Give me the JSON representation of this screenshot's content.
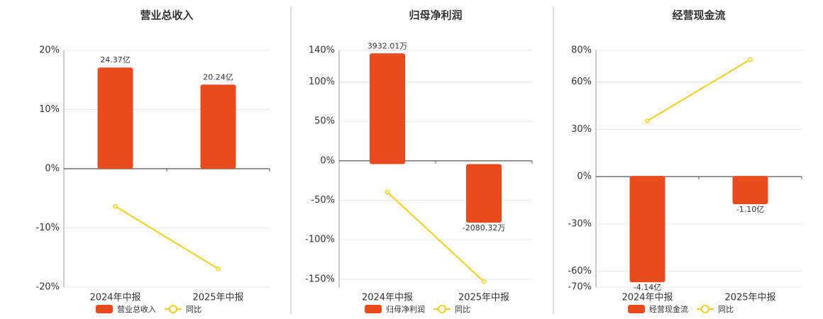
{
  "chart_data": [
    {
      "type": "combo",
      "title": "营业总收入",
      "categories": [
        "2024年中报",
        "2025年中报"
      ],
      "ylim": [
        -20,
        20
      ],
      "yticks": [
        {
          "value": -20,
          "label": "-20%"
        },
        {
          "value": -10,
          "label": "-10%"
        },
        {
          "value": 0,
          "label": "0%"
        },
        {
          "value": 10,
          "label": "10%"
        },
        {
          "value": 20,
          "label": "20%"
        }
      ],
      "y2lim": [
        -28.5,
        28.5
      ],
      "grid": true,
      "series": [
        {
          "name": "营业总收入",
          "type": "bar",
          "axis": "y2",
          "color": "#e84c1e",
          "values": [
            24.37,
            20.24
          ],
          "value_labels": [
            "24.37亿",
            "20.24亿"
          ]
        },
        {
          "name": "同比",
          "type": "line",
          "color": "#f2cf1d",
          "values": [
            -6.35,
            -16.9
          ]
        }
      ]
    },
    {
      "type": "combo",
      "title": "归母净利润",
      "categories": [
        "2024年中报",
        "2025年中报"
      ],
      "ylim": [
        -160,
        140
      ],
      "yticks": [
        {
          "value": -150,
          "label": "-150%"
        },
        {
          "value": -100,
          "label": "-100%"
        },
        {
          "value": -50,
          "label": "-50%"
        },
        {
          "value": 0,
          "label": "0%"
        },
        {
          "value": 50,
          "label": "50%"
        },
        {
          "value": 100,
          "label": "100%"
        },
        {
          "value": 140,
          "label": "140%"
        }
      ],
      "y2lim": [
        -4370,
        4040
      ],
      "grid": true,
      "series": [
        {
          "name": "归母净利润",
          "type": "bar",
          "axis": "y2",
          "color": "#e84c1e",
          "values": [
            3932.01,
            -2080.32
          ],
          "value_labels": [
            "3932.01万",
            "-2080.32万"
          ]
        },
        {
          "name": "同比",
          "type": "line",
          "color": "#f2cf1d",
          "values": [
            -39.6,
            -153
          ]
        }
      ]
    },
    {
      "type": "combo",
      "title": "经营现金流",
      "categories": [
        "2024年中报",
        "2025年中报"
      ],
      "ylim": [
        -70,
        80
      ],
      "yticks": [
        {
          "value": -70,
          "label": "-70%"
        },
        {
          "value": -60,
          "label": "-60%"
        },
        {
          "value": -30,
          "label": "-30%"
        },
        {
          "value": 0,
          "label": "0%"
        },
        {
          "value": 30,
          "label": "30%"
        },
        {
          "value": 60,
          "label": "60%"
        },
        {
          "value": 80,
          "label": "80%"
        }
      ],
      "y2lim": [
        -4.33,
        4.89
      ],
      "grid": true,
      "series": [
        {
          "name": "经营现金流",
          "type": "bar",
          "axis": "y2",
          "color": "#e84c1e",
          "values": [
            -4.14,
            -1.1
          ],
          "value_labels": [
            "-4.14亿",
            "-1.10亿"
          ]
        },
        {
          "name": "同比",
          "type": "line",
          "color": "#f2cf1d",
          "values": [
            35.3,
            74.2
          ]
        }
      ]
    }
  ]
}
